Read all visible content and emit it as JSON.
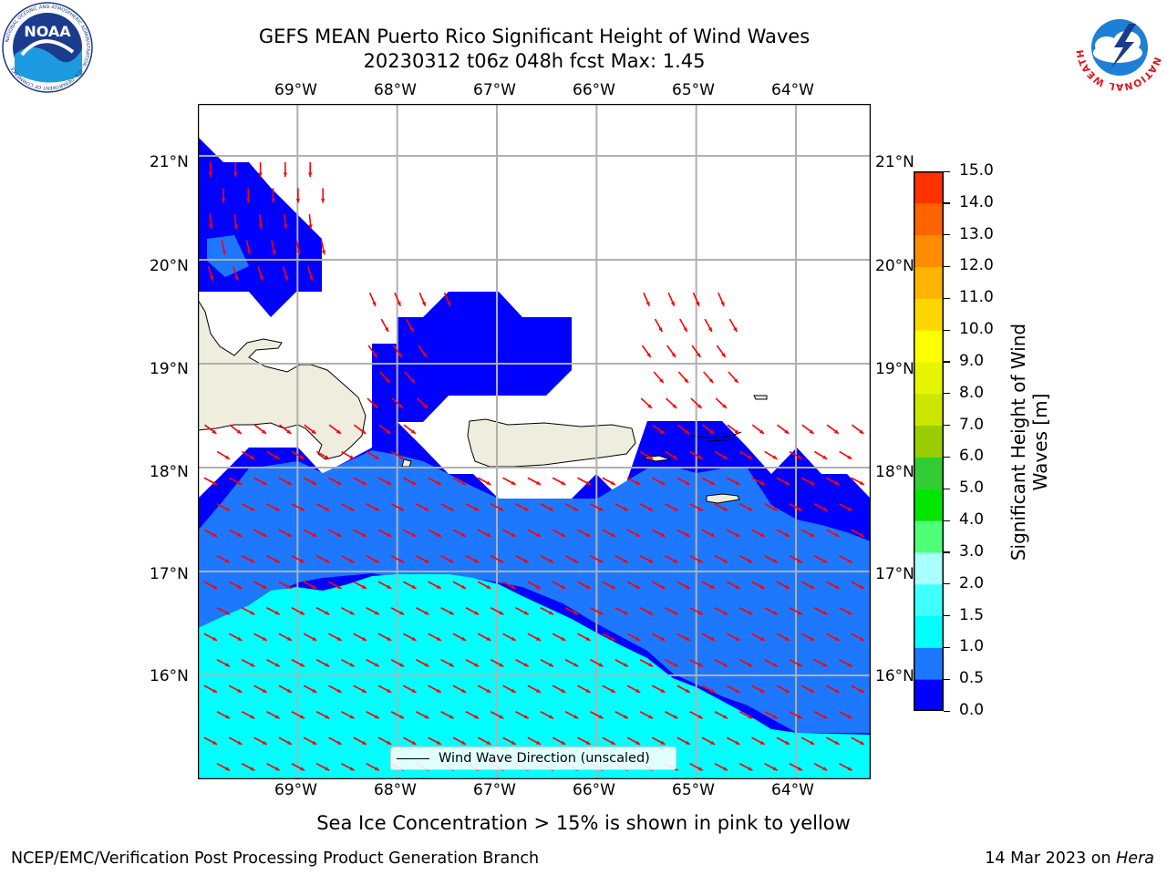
{
  "title": {
    "line1": "GEFS MEAN Puerto Rico Significant Height of Wind Waves",
    "line2": "20230312 t06z 048h fcst   Max: 1.45"
  },
  "logos": {
    "noaa": {
      "text": "NOAA",
      "ring_text": "NATIONAL OCEANIC AND ATMOSPHERIC ADMINISTRATION · U.S. DEPARTMENT OF COMMERCE"
    },
    "nws": {
      "ring_text": "NATIONAL WEATHER SERVICE"
    }
  },
  "map": {
    "lon_ticks": [
      "69°W",
      "68°W",
      "67°W",
      "66°W",
      "65°W",
      "64°W"
    ],
    "lat_ticks": [
      "21°N",
      "20°N",
      "19°N",
      "18°N",
      "17°N",
      "16°N"
    ],
    "lon_range": [
      -70.0,
      -63.25
    ],
    "lat_range": [
      15.0,
      21.5
    ],
    "grid": true,
    "land_color": "#efedde",
    "legend_label": "Wind Wave Direction (unscaled)",
    "arrow_color": "#ff0000",
    "arrow_direction": "toward SE (from NW), south-ward in the north"
  },
  "colorbar": {
    "label_line1": "Significant Height of Wind",
    "label_line2": "Waves [m]",
    "ticks": [
      "0.0",
      "0.5",
      "1.0",
      "1.5",
      "2.0",
      "3.0",
      "4.0",
      "5.0",
      "6.0",
      "7.0",
      "8.0",
      "9.0",
      "10.0",
      "11.0",
      "12.0",
      "13.0",
      "14.0",
      "15.0"
    ],
    "colors": [
      "#0000ff",
      "#1e78ff",
      "#00ffff",
      "#40ffff",
      "#aaffff",
      "#50ff78",
      "#00e600",
      "#32cd32",
      "#9acd00",
      "#cde600",
      "#e6f500",
      "#ffff00",
      "#ffd700",
      "#ffb400",
      "#ff8c00",
      "#ff6400",
      "#ff3200",
      "#ff0000"
    ]
  },
  "subtitle": "Sea Ice Concentration > 15% is shown in pink to yellow",
  "footer": {
    "left": "NCEP/EMC/Verification Post Processing Product Generation Branch",
    "right_date": "14 Mar 2023 on ",
    "right_machine": "Hera"
  }
}
